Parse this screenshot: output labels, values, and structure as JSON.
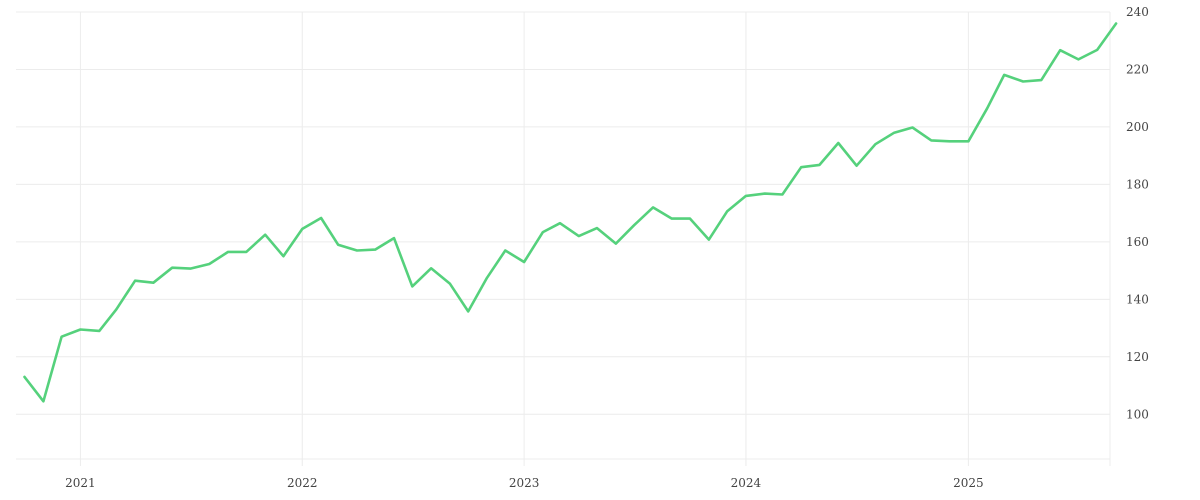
{
  "chart_data": {
    "type": "line",
    "title": "",
    "xlabel": "",
    "ylabel": "",
    "x_axis": {
      "type": "date",
      "range": [
        "2020-09-17",
        "2025-08-22"
      ],
      "ticks": [
        {
          "date": "2021-01-01",
          "label": "2021"
        },
        {
          "date": "2022-01-01",
          "label": "2022"
        },
        {
          "date": "2023-01-01",
          "label": "2023"
        },
        {
          "date": "2024-01-01",
          "label": "2024"
        },
        {
          "date": "2025-01-01",
          "label": "2025"
        }
      ]
    },
    "y_axis": {
      "position": "right",
      "range": [
        82,
        240
      ],
      "ticks": [
        100,
        120,
        140,
        160,
        180,
        200,
        220,
        240
      ]
    },
    "grid": true,
    "legend": "none",
    "series": [
      {
        "color": "#55d17c",
        "points": [
          [
            "2020-10-01",
            113
          ],
          [
            "2020-11-01",
            104.5
          ],
          [
            "2020-12-01",
            127
          ],
          [
            "2021-01-01",
            129.5
          ],
          [
            "2021-02-01",
            129
          ],
          [
            "2021-03-01",
            136.5
          ],
          [
            "2021-04-01",
            146.5
          ],
          [
            "2021-05-01",
            145.8
          ],
          [
            "2021-06-01",
            151
          ],
          [
            "2021-07-01",
            150.7
          ],
          [
            "2021-08-01",
            152.3
          ],
          [
            "2021-09-01",
            156.5
          ],
          [
            "2021-10-01",
            156.5
          ],
          [
            "2021-11-01",
            162.5
          ],
          [
            "2021-12-01",
            155
          ],
          [
            "2022-01-01",
            164.5
          ],
          [
            "2022-02-01",
            168.3
          ],
          [
            "2022-03-01",
            159
          ],
          [
            "2022-04-01",
            157
          ],
          [
            "2022-05-01",
            157.3
          ],
          [
            "2022-06-01",
            161.3
          ],
          [
            "2022-07-01",
            144.5
          ],
          [
            "2022-08-01",
            150.8
          ],
          [
            "2022-09-01",
            145.4
          ],
          [
            "2022-10-01",
            135.8
          ],
          [
            "2022-11-01",
            147.5
          ],
          [
            "2022-12-01",
            157
          ],
          [
            "2023-01-01",
            153
          ],
          [
            "2023-02-01",
            163.4
          ],
          [
            "2023-03-01",
            166.5
          ],
          [
            "2023-04-01",
            162
          ],
          [
            "2023-05-01",
            164.8
          ],
          [
            "2023-06-01",
            159.4
          ],
          [
            "2023-07-01",
            165.8
          ],
          [
            "2023-08-01",
            172
          ],
          [
            "2023-09-01",
            168.1
          ],
          [
            "2023-10-01",
            168.1
          ],
          [
            "2023-11-01",
            160.8
          ],
          [
            "2023-12-01",
            170.6
          ],
          [
            "2024-01-01",
            176
          ],
          [
            "2024-02-01",
            176.8
          ],
          [
            "2024-03-01",
            176.5
          ],
          [
            "2024-04-01",
            186
          ],
          [
            "2024-05-01",
            186.8
          ],
          [
            "2024-06-01",
            194.4
          ],
          [
            "2024-07-01",
            186.5
          ],
          [
            "2024-08-01",
            194
          ],
          [
            "2024-09-01",
            198
          ],
          [
            "2024-10-01",
            199.8
          ],
          [
            "2024-11-01",
            195.3
          ],
          [
            "2024-12-01",
            195
          ],
          [
            "2025-01-01",
            195
          ],
          [
            "2025-02-01",
            206.5
          ],
          [
            "2025-03-01",
            218.1
          ],
          [
            "2025-04-01",
            215.8
          ],
          [
            "2025-05-01",
            216.3
          ],
          [
            "2025-06-01",
            226.7
          ],
          [
            "2025-07-01",
            223.5
          ],
          [
            "2025-08-01",
            226.8
          ],
          [
            "2025-09-01",
            236
          ]
        ]
      }
    ]
  }
}
